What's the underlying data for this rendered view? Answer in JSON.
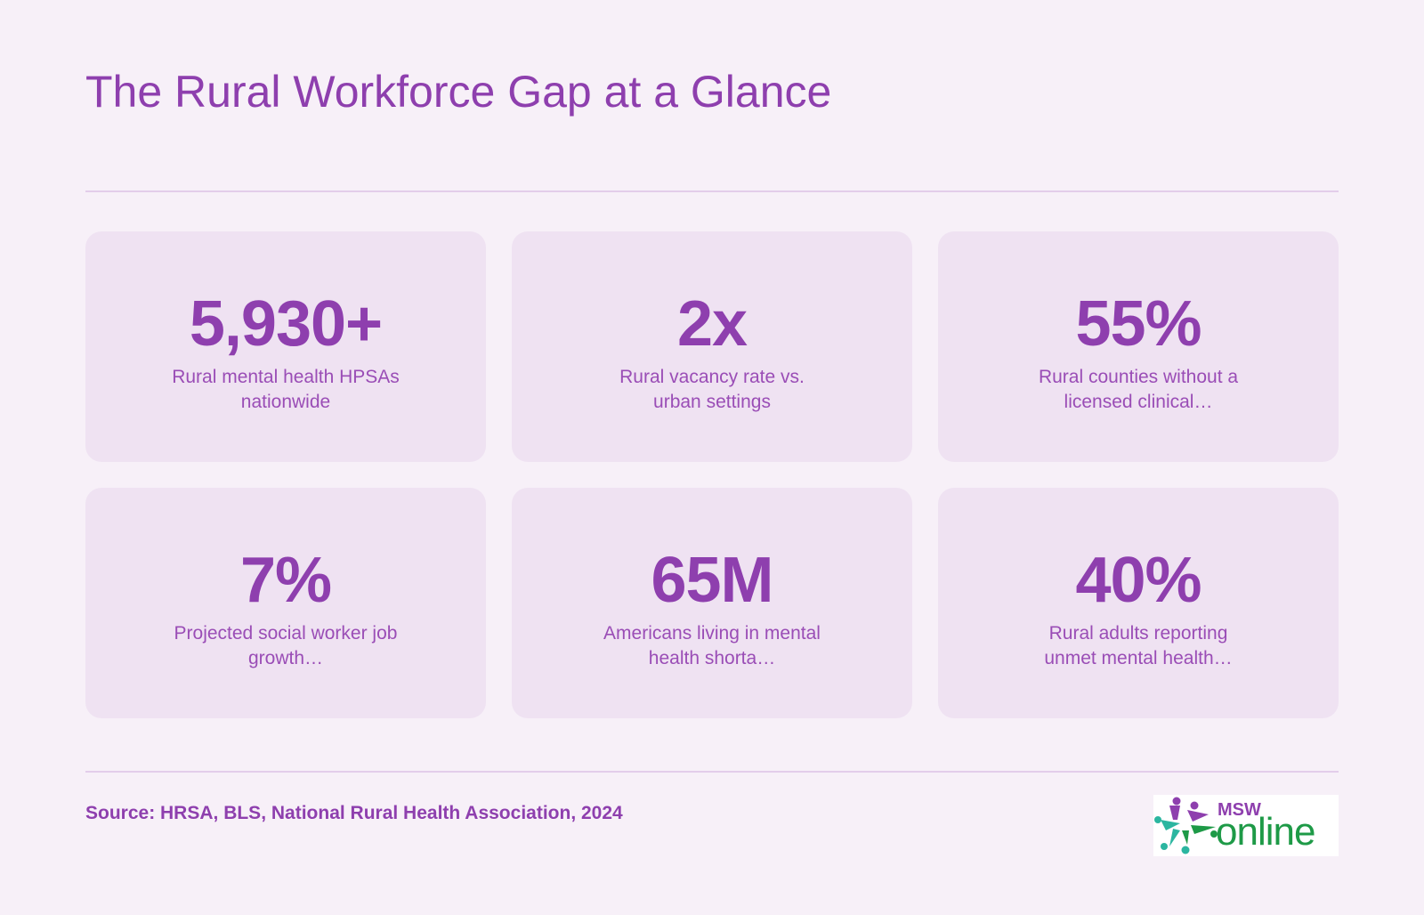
{
  "header": {
    "title": "The Rural Workforce Gap at a Glance"
  },
  "stats": [
    {
      "value": "5,930+",
      "label": "Rural mental health HPSAs nationwide"
    },
    {
      "value": "2x",
      "label": "Rural vacancy rate vs. urban settings"
    },
    {
      "value": "55%",
      "label": "Rural counties without a licensed clinical…"
    },
    {
      "value": "7%",
      "label": "Projected social worker job growth…"
    },
    {
      "value": "65M",
      "label": "Americans living in mental health shorta…"
    },
    {
      "value": "40%",
      "label": "Rural adults reporting unmet mental health…"
    }
  ],
  "footer": {
    "source": "Source: HRSA, BLS, National Rural Health Association, 2024",
    "logo": {
      "line1": "MSW",
      "line2": "online"
    }
  },
  "colors": {
    "accent": "#8e3fae",
    "background": "#f7f0f8",
    "card": "#efe2f2",
    "logo_green": "#1e9a47"
  }
}
